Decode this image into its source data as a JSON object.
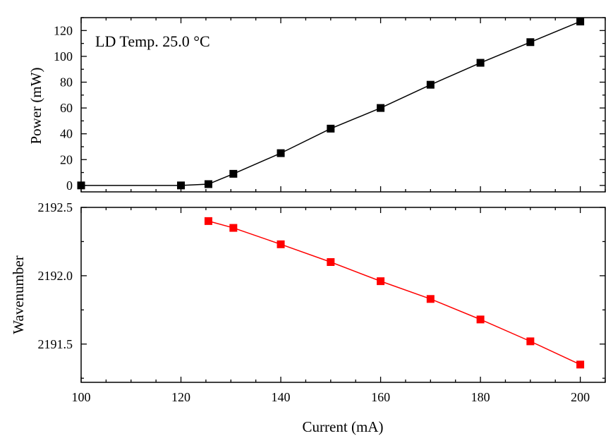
{
  "chart_data": [
    {
      "type": "line",
      "id": "top",
      "annotation": "LD Temp. 25.0 °C",
      "ylabel": "Power (mW)",
      "xlabel": "",
      "xlim": [
        100,
        205
      ],
      "ylim": [
        -5,
        130
      ],
      "x_ticks": [
        100,
        120,
        140,
        160,
        180,
        200
      ],
      "x_tick_labels_visible": false,
      "y_ticks": [
        0,
        20,
        40,
        60,
        80,
        100,
        120
      ],
      "y_tick_labels": [
        "0",
        "20",
        "40",
        "60",
        "80",
        "100",
        "120"
      ],
      "series": [
        {
          "name": "Power",
          "color": "#000000",
          "x": [
            100,
            120,
            125.5,
            130.5,
            140,
            150,
            160,
            170,
            180,
            190,
            200
          ],
          "y": [
            0,
            0,
            1,
            9,
            25,
            44,
            60,
            78,
            95,
            111,
            127
          ]
        }
      ]
    },
    {
      "type": "line",
      "id": "bottom",
      "ylabel": "Wavenumber",
      "xlabel": "Current (mA)",
      "xlim": [
        100,
        205
      ],
      "ylim": [
        2191.22,
        2192.5
      ],
      "x_ticks": [
        100,
        120,
        140,
        160,
        180,
        200
      ],
      "x_tick_labels": [
        "100",
        "120",
        "140",
        "160",
        "180",
        "200"
      ],
      "y_ticks": [
        2191.5,
        2192.0,
        2192.5
      ],
      "y_tick_labels": [
        "2191.5",
        "2192.0",
        "2192.5"
      ],
      "series": [
        {
          "name": "Wavenumber",
          "color": "#ff0000",
          "x": [
            125.5,
            130.5,
            140,
            150,
            160,
            170,
            180,
            190,
            200
          ],
          "y": [
            2192.4,
            2192.35,
            2192.23,
            2192.1,
            2191.96,
            2191.83,
            2191.68,
            2191.52,
            2191.35
          ]
        }
      ]
    }
  ]
}
